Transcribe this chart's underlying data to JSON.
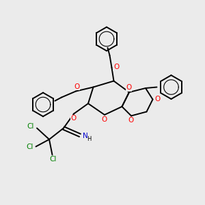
{
  "bg_color": "#ebebeb",
  "atom_colors": {
    "O": "#ff0000",
    "N": "#0000cd",
    "Cl": "#008000",
    "C": "#000000",
    "H": "#000000"
  },
  "bond_color": "#000000",
  "line_width": 1.4,
  "font_size_atom": 7.5,
  "font_size_small": 6.5
}
